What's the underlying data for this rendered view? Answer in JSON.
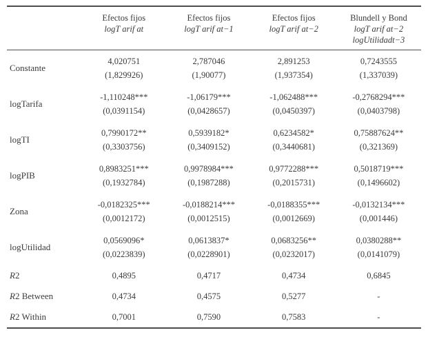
{
  "table": {
    "columns": [
      {
        "title": "Efectos fijos",
        "sub1": "logT arif at",
        "sub2": ""
      },
      {
        "title": "Efectos fijos",
        "sub1": "logT arif at−1",
        "sub2": ""
      },
      {
        "title": "Efectos fijos",
        "sub1": "logT arif at−2",
        "sub2": ""
      },
      {
        "title": "Blundell y Bond",
        "sub1": "logT arif at−2",
        "sub2": "logUtilidadt−3"
      }
    ],
    "rows": [
      {
        "label": "Constante",
        "cells": [
          {
            "est": "4,020751",
            "se": "(1,829926)"
          },
          {
            "est": "2,787046",
            "se": "(1,90077)"
          },
          {
            "est": "2,891253",
            "se": "(1,937354)"
          },
          {
            "est": "0,7243555",
            "se": "(1,337039)"
          }
        ]
      },
      {
        "label": "logTarifa",
        "cells": [
          {
            "est": "-1,110248***",
            "se": "(0,0391154)"
          },
          {
            "est": "-1,06179***",
            "se": "(0,0428657)"
          },
          {
            "est": "-1,062488***",
            "se": "(0,0450397)"
          },
          {
            "est": "-0,2768294***",
            "se": "(0,0403798)"
          }
        ]
      },
      {
        "label": "logTI",
        "cells": [
          {
            "est": "0,7990172**",
            "se": "(0,3303756)"
          },
          {
            "est": "0,5939182*",
            "se": "(0,3409152)"
          },
          {
            "est": "0,6234582*",
            "se": "(0,3440681)"
          },
          {
            "est": "0,75887624**",
            "se": "(0,321369)"
          }
        ]
      },
      {
        "label": "logPIB",
        "cells": [
          {
            "est": "0,8983251***",
            "se": "(0,1932784)"
          },
          {
            "est": "0,9978984***",
            "se": "(0,1987288)"
          },
          {
            "est": "0,9772288***",
            "se": "(0,2015731)"
          },
          {
            "est": "0,5018719***",
            "se": "(0,1496602)"
          }
        ]
      },
      {
        "label": "Zona",
        "cells": [
          {
            "est": "-0,0182325***",
            "se": "(0,0012172)"
          },
          {
            "est": "-0,0188214***",
            "se": "(0,0012515)"
          },
          {
            "est": "-0,0188355***",
            "se": "(0,0012669)"
          },
          {
            "est": "-0,0132134***",
            "se": "(0,001446)"
          }
        ]
      },
      {
        "label": "logUtilidad",
        "cells": [
          {
            "est": "0,0569096*",
            "se": "(0,0223839)"
          },
          {
            "est": "0,0613837*",
            "se": "(0,0228901)"
          },
          {
            "est": "0,0683256**",
            "se": "(0,0232017)"
          },
          {
            "est": "0,0380288**",
            "se": "(0,0141079)"
          }
        ]
      },
      {
        "label_italic": "R",
        "label_rest": "2",
        "cells": [
          "0,4895",
          "0,4717",
          "0,4734",
          "0,6845"
        ]
      },
      {
        "label_italic": "R",
        "label_rest": "2 Between",
        "cells": [
          "0,4734",
          "0,4575",
          "0,5277",
          "-"
        ]
      },
      {
        "label_italic": "R",
        "label_rest": "2 Within",
        "cells": [
          "0,7001",
          "0,7590",
          "0,7583",
          "-"
        ]
      }
    ]
  }
}
